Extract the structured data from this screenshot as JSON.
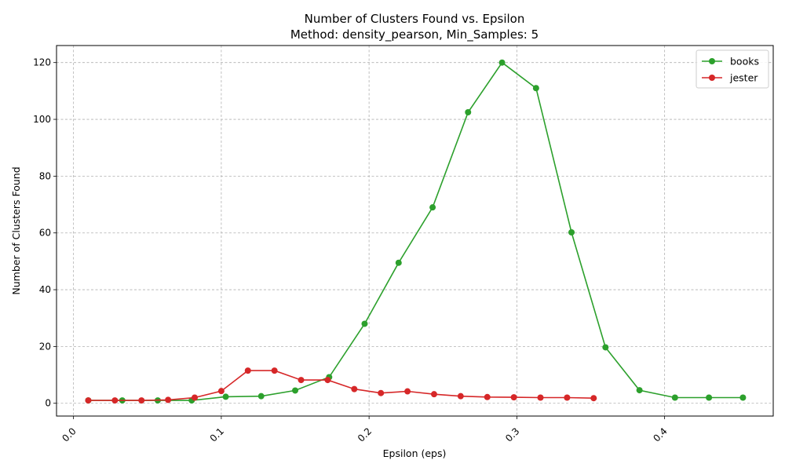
{
  "chart_data": {
    "type": "line",
    "title": "Number of Clusters Found vs. Epsilon",
    "subtitle": "Method: density_pearson, Min_Samples: 5",
    "xlabel": "Epsilon (eps)",
    "ylabel": "Number of Clusters Found",
    "xlim": [
      -0.0115,
      0.4735
    ],
    "ylim": [
      -4.5,
      126
    ],
    "xticks": [
      0.0,
      0.1,
      0.2,
      0.3,
      0.4
    ],
    "xtick_labels": [
      "0.0",
      "0.1",
      "0.2",
      "0.3",
      "0.4"
    ],
    "yticks": [
      0,
      20,
      40,
      60,
      80,
      100,
      120
    ],
    "ytick_labels": [
      "0",
      "20",
      "40",
      "60",
      "80",
      "100",
      "120"
    ],
    "grid": true,
    "legend_position": "top-right",
    "series": [
      {
        "name": "books",
        "color": "#2ca02c",
        "x": [
          0.01,
          0.033,
          0.057,
          0.08,
          0.103,
          0.127,
          0.15,
          0.173,
          0.197,
          0.22,
          0.243,
          0.267,
          0.29,
          0.313,
          0.337,
          0.36,
          0.383,
          0.407,
          0.43,
          0.453
        ],
        "y": [
          1,
          1,
          1,
          1,
          2.3,
          2.5,
          4.5,
          9.2,
          28,
          49.5,
          69,
          102.5,
          120,
          111,
          60.2,
          19.7,
          4.6,
          2,
          2,
          2
        ]
      },
      {
        "name": "jester",
        "color": "#d62728",
        "x": [
          0.01,
          0.028,
          0.046,
          0.064,
          0.082,
          0.1,
          0.118,
          0.136,
          0.154,
          0.172,
          0.19,
          0.208,
          0.226,
          0.244,
          0.262,
          0.28,
          0.298,
          0.316,
          0.334,
          0.352
        ],
        "y": [
          1,
          1,
          1,
          1.2,
          2,
          4.3,
          11.5,
          11.5,
          8.2,
          8.2,
          5,
          3.6,
          4.2,
          3.2,
          2.5,
          2.2,
          2.1,
          2,
          2,
          1.8
        ]
      }
    ]
  }
}
